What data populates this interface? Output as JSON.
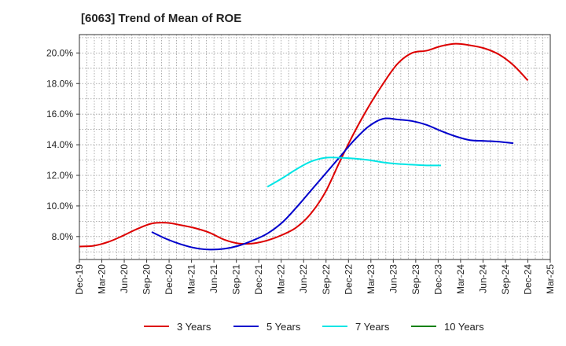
{
  "chart_data": {
    "type": "line",
    "title": "[6063]  Trend of Mean of ROE",
    "xlabel": "",
    "ylabel": "",
    "x_ticks": [
      "Dec-19",
      "Mar-20",
      "Jun-20",
      "Sep-20",
      "Dec-20",
      "Mar-21",
      "Jun-21",
      "Sep-21",
      "Dec-21",
      "Mar-22",
      "Jun-22",
      "Sep-22",
      "Dec-22",
      "Mar-23",
      "Jun-23",
      "Sep-23",
      "Dec-23",
      "Mar-24",
      "Jun-24",
      "Sep-24",
      "Dec-24",
      "Mar-25"
    ],
    "y_ticks": [
      "8.0%",
      "10.0%",
      "12.0%",
      "14.0%",
      "16.0%",
      "18.0%",
      "20.0%"
    ],
    "y_tick_values": [
      8,
      10,
      12,
      14,
      16,
      18,
      20
    ],
    "ylim": [
      6.5,
      21.2
    ],
    "grid": true,
    "legend_position": "bottom",
    "series": [
      {
        "name": "3 Years",
        "color": "#dd0000",
        "start_index": 0,
        "values": [
          7.35,
          7.4,
          7.65,
          8.05,
          8.5,
          8.85,
          8.9,
          8.75,
          8.55,
          8.25,
          7.8,
          7.55,
          7.55,
          7.75,
          8.1,
          8.6,
          9.5,
          10.9,
          12.9,
          14.8,
          16.5,
          18.0,
          19.3,
          20.0,
          20.15,
          20.45,
          20.6,
          20.5,
          20.3,
          19.9,
          19.2,
          18.2
        ]
      },
      {
        "name": "5 Years",
        "color": "#0000cc",
        "start_index": 5,
        "values": [
          8.3,
          7.85,
          7.5,
          7.25,
          7.15,
          7.2,
          7.4,
          7.75,
          8.2,
          8.9,
          9.9,
          11.0,
          12.1,
          13.2,
          14.3,
          15.2,
          15.7,
          15.65,
          15.55,
          15.3,
          14.9,
          14.55,
          14.3,
          14.25,
          14.2,
          14.1
        ]
      },
      {
        "name": "7 Years",
        "color": "#00e5e5",
        "start_index": 13,
        "values": [
          11.25,
          11.8,
          12.4,
          12.9,
          13.15,
          13.15,
          13.1,
          13.0,
          12.85,
          12.75,
          12.7,
          12.65,
          12.65
        ]
      },
      {
        "name": "10 Years",
        "color": "#008000",
        "start_index": 0,
        "values": []
      }
    ]
  }
}
